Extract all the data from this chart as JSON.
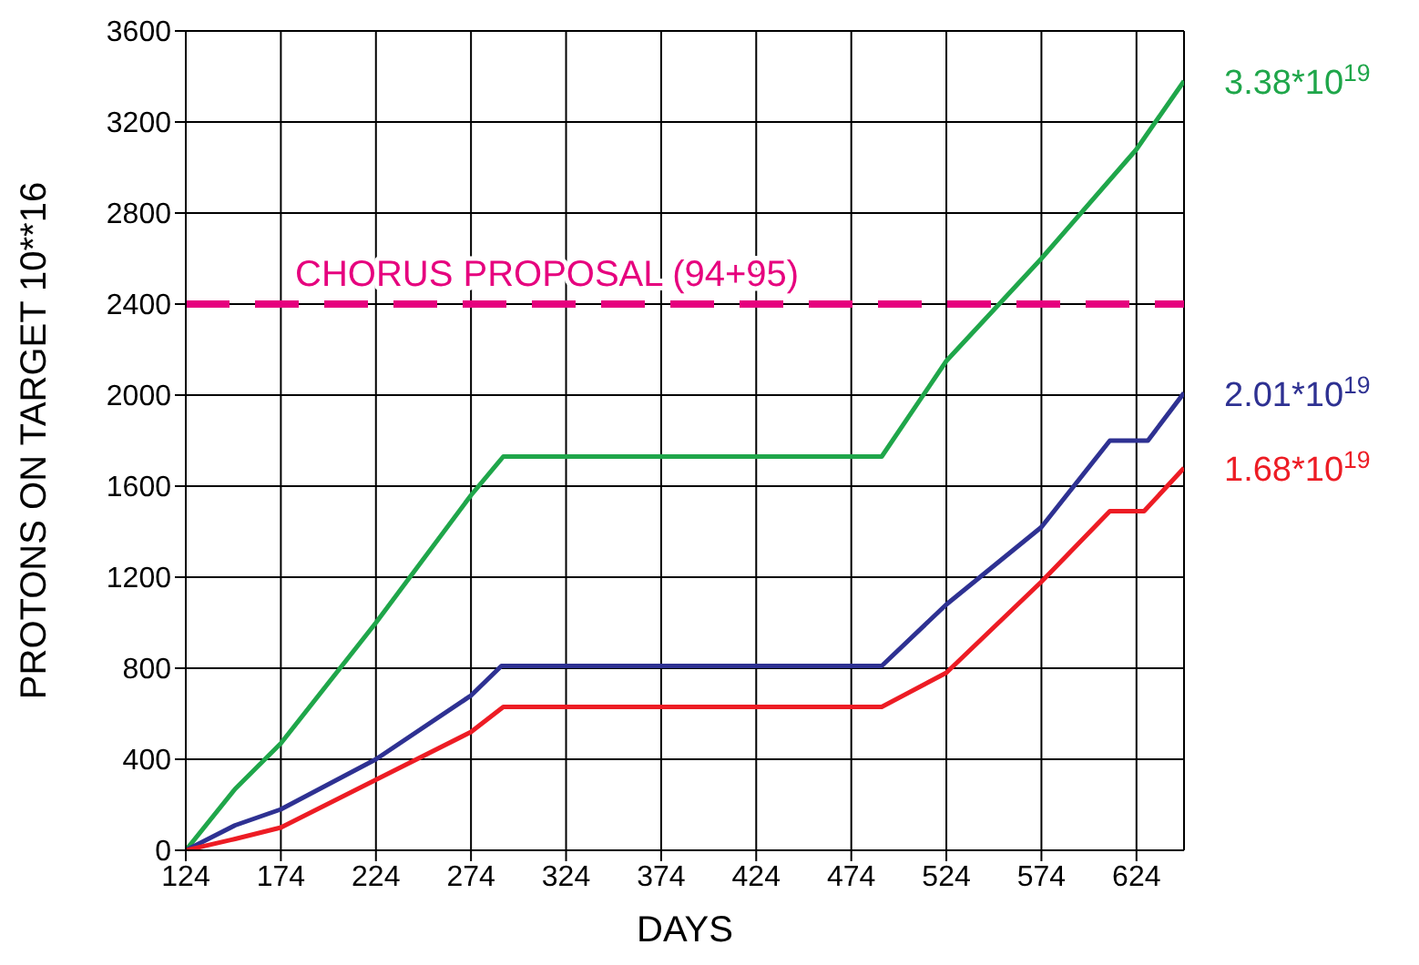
{
  "chart_data": {
    "type": "line",
    "xlabel": "DAYS",
    "ylabel": "PROTONS ON TARGET 10**16",
    "xlim": [
      124,
      649
    ],
    "xticks": [
      124,
      174,
      224,
      274,
      324,
      374,
      424,
      474,
      524,
      574,
      624
    ],
    "ylim": [
      0,
      3600
    ],
    "yticks": [
      0,
      400,
      800,
      1200,
      1600,
      2000,
      2400,
      2800,
      3200,
      3600
    ],
    "grid": true,
    "legend": false,
    "marker": "none",
    "line_style": "solid",
    "series": [
      {
        "color": "#1fa64a",
        "x": [
          124,
          150,
          174,
          224,
          274,
          291,
          490,
          524,
          574,
          624,
          649
        ],
        "values": [
          0,
          270,
          470,
          1000,
          1560,
          1730,
          1730,
          2150,
          2600,
          3080,
          3380
        ]
      },
      {
        "color": "#2e3192",
        "x": [
          124,
          150,
          174,
          224,
          274,
          290,
          490,
          524,
          574,
          610,
          630,
          649
        ],
        "values": [
          0,
          110,
          180,
          400,
          680,
          810,
          810,
          1080,
          1420,
          1800,
          1800,
          2010
        ]
      },
      {
        "color": "#ed1c24",
        "x": [
          124,
          150,
          174,
          224,
          274,
          291,
          490,
          524,
          574,
          610,
          628,
          649
        ],
        "values": [
          0,
          50,
          100,
          310,
          520,
          630,
          630,
          780,
          1180,
          1490,
          1490,
          1680
        ]
      }
    ],
    "ref_lines": [
      {
        "axis": "y",
        "value": 2400,
        "label": "CHORUS PROPOSAL (94+95)",
        "color": "#e6007e",
        "line_style": "dashed"
      }
    ],
    "annotations": [
      "3.38*10$^{19}$",
      "2.01*10$^{19}$",
      "1.68*10$^{19}$"
    ]
  }
}
